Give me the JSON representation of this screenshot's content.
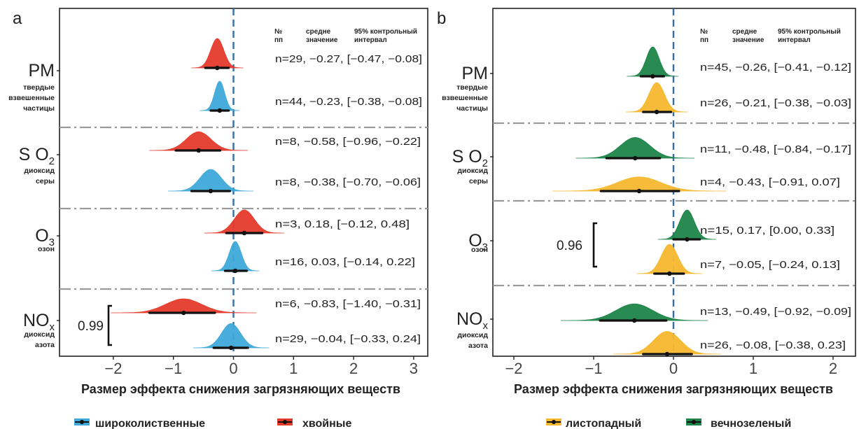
{
  "figure": {
    "header": {
      "col1": "№\nпп",
      "col2": "средне\nзначение",
      "col3": "95% контрольный\nинтервал"
    },
    "categories": [
      {
        "main": "PM",
        "sub": null,
        "desc": [
          "твердые",
          "взвешенные",
          "частицы"
        ]
      },
      {
        "main": "S O",
        "sub": "2",
        "desc": [
          "диоксид",
          "серы"
        ]
      },
      {
        "main": "O",
        "sub": "3",
        "desc": [
          "озон"
        ]
      },
      {
        "main": "NO",
        "sub": "x",
        "desc": [
          "диоксид",
          "азота"
        ]
      }
    ],
    "xlabel": "Размер эффекта снижения загрязняющих веществ"
  },
  "chart_data": [
    {
      "type": "density-forest",
      "panel": "a",
      "xlim": [
        -2.8,
        3.1
      ],
      "xticks": [
        -2,
        -1,
        0,
        1,
        2,
        3
      ],
      "reference_line": 0,
      "series": [
        {
          "name": "широколиственные",
          "color": "#3FA9D9"
        },
        {
          "name": "хвойные",
          "color": "#E53A2B"
        }
      ],
      "rows": [
        {
          "group": "PM",
          "series": "хвойные",
          "n": 29,
          "mean": -0.27,
          "ci": [
            -0.47,
            -0.08
          ],
          "label": "n=29, −0.27, [−0.47, −0.08]"
        },
        {
          "group": "PM",
          "series": "широколиственные",
          "n": 44,
          "mean": -0.23,
          "ci": [
            -0.38,
            -0.08
          ],
          "label": "n=44, −0.23, [−0.38, −0.08]"
        },
        {
          "group": "SO2",
          "series": "хвойные",
          "n": 8,
          "mean": -0.58,
          "ci": [
            -0.96,
            -0.22
          ],
          "label": "n=8, −0.58, [−0.96, −0.22]"
        },
        {
          "group": "SO2",
          "series": "широколиственные",
          "n": 8,
          "mean": -0.38,
          "ci": [
            -0.7,
            -0.06
          ],
          "label": "n=8, −0.38, [−0.70, −0.06]"
        },
        {
          "group": "O3",
          "series": "хвойные",
          "n": 3,
          "mean": 0.18,
          "ci": [
            -0.12,
            0.48
          ],
          "label": "n=3, 0.18, [−0.12, 0.48]"
        },
        {
          "group": "O3",
          "series": "широколиственные",
          "n": 16,
          "mean": 0.03,
          "ci": [
            -0.14,
            0.22
          ],
          "label": "n=16, 0.03, [−0.14, 0.22]"
        },
        {
          "group": "NOx",
          "series": "хвойные",
          "n": 6,
          "mean": -0.83,
          "ci": [
            -1.4,
            -0.31
          ],
          "label": "n=6, −0.83, [−1.40, −0.31]"
        },
        {
          "group": "NOx",
          "series": "широколиственные",
          "n": 29,
          "mean": -0.04,
          "ci": [
            -0.33,
            0.24
          ],
          "label": "n=29, −0.04, [−0.33, 0.24]"
        }
      ],
      "bracket": {
        "group": "NOx",
        "value": "0.99"
      }
    },
    {
      "type": "density-forest",
      "panel": "b",
      "xlim": [
        -2.5,
        2.25
      ],
      "xticks": [
        -2,
        -1,
        0,
        1,
        2
      ],
      "reference_line": 0,
      "series": [
        {
          "name": "листопадный",
          "color": "#F5B82E"
        },
        {
          "name": "вечнозеленый",
          "color": "#1E8449"
        }
      ],
      "rows": [
        {
          "group": "PM",
          "series": "вечнозеленый",
          "n": 45,
          "mean": -0.26,
          "ci": [
            -0.41,
            -0.12
          ],
          "label": "n=45, −0.26, [−0.41, −0.12]"
        },
        {
          "group": "PM",
          "series": "листопадный",
          "n": 26,
          "mean": -0.21,
          "ci": [
            -0.38,
            -0.03
          ],
          "label": "n=26, −0.21, [−0.38, −0.03]"
        },
        {
          "group": "SO2",
          "series": "вечнозеленый",
          "n": 11,
          "mean": -0.48,
          "ci": [
            -0.84,
            -0.17
          ],
          "label": "n=11, −0.48, [−0.84, −0.17]"
        },
        {
          "group": "SO2",
          "series": "листопадный",
          "n": 4,
          "mean": -0.43,
          "ci": [
            -0.91,
            0.07
          ],
          "label": "n=4, −0.43, [−0.91, 0.07]"
        },
        {
          "group": "O3",
          "series": "вечнозеленый",
          "n": 15,
          "mean": 0.17,
          "ci": [
            0.0,
            0.33
          ],
          "label": "n=15, 0.17, [0.00, 0.33]"
        },
        {
          "group": "O3",
          "series": "листопадный",
          "n": 7,
          "mean": -0.05,
          "ci": [
            -0.24,
            0.13
          ],
          "label": "n=7, −0.05, [−0.24, 0.13]"
        },
        {
          "group": "NOx",
          "series": "вечнозеленый",
          "n": 13,
          "mean": -0.49,
          "ci": [
            -0.92,
            -0.09
          ],
          "label": "n=13, −0.49, [−0.92, −0.09]"
        },
        {
          "group": "NOx",
          "series": "листопадный",
          "n": 26,
          "mean": -0.08,
          "ci": [
            -0.38,
            0.23
          ],
          "label": "n=26, −0.08, [−0.38, 0.23]"
        }
      ],
      "bracket": {
        "group": "O3",
        "value": "0.96"
      }
    }
  ]
}
